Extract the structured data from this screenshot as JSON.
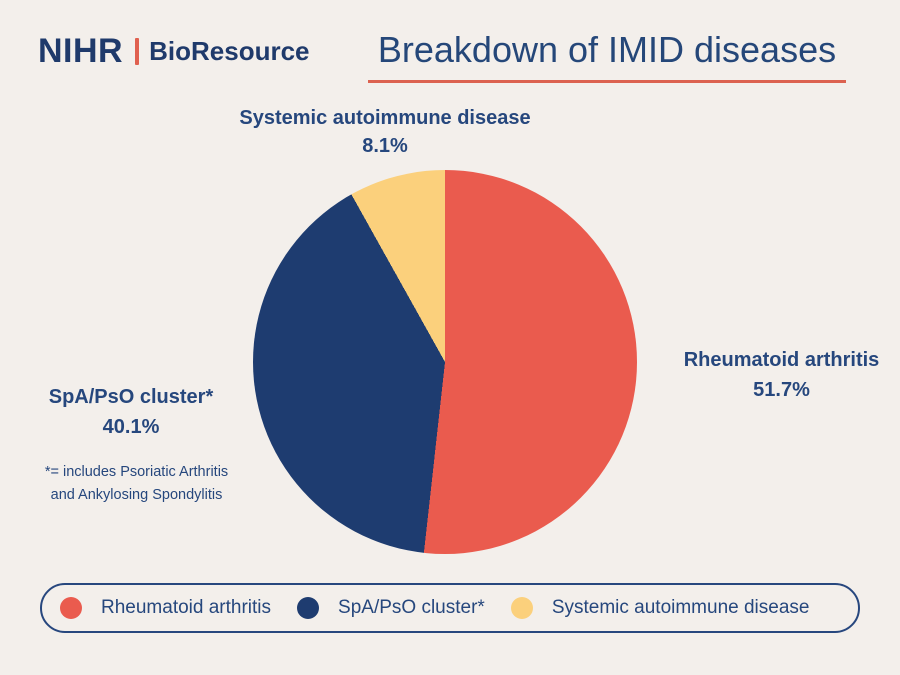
{
  "page": {
    "background_color": "#F3EFEB",
    "text_color": "#26477D"
  },
  "header": {
    "logo": {
      "primary": "NIHR",
      "secondary": "BioResource",
      "separator_color": "#E0604F",
      "text_color": "#1F3A6B"
    },
    "title": "Breakdown of IMID diseases",
    "title_underline_color": "#DC6250"
  },
  "chart_data": {
    "type": "pie",
    "title": "Breakdown of IMID diseases",
    "start_angle_deg": 0,
    "direction": "clockwise",
    "legend_position": "bottom",
    "slices": [
      {
        "label": "Rheumatoid arthritis",
        "value": 51.7,
        "color": "#EA5B4E"
      },
      {
        "label": "SpA/PsO cluster*",
        "value": 40.1,
        "color": "#1E3C70"
      },
      {
        "label": "Systemic autoimmune disease",
        "value": 8.1,
        "color": "#FBD07C"
      }
    ]
  },
  "callouts": {
    "top": {
      "name": "Systemic autoimmune disease",
      "value": "8.1%"
    },
    "right": {
      "name": "Rheumatoid arthritis",
      "value": "51.7%"
    },
    "left": {
      "name": "SpA/PsO cluster*",
      "value": "40.1%"
    }
  },
  "footnote": {
    "line1": "*= includes Psoriatic Arthritis",
    "line2": "and Ankylosing Spondylitis"
  },
  "legend": {
    "border_color": "#27477E",
    "items": [
      {
        "label": "Rheumatoid arthritis",
        "color": "#EA5B4E"
      },
      {
        "label": "SpA/PsO cluster*",
        "color": "#1E3C70"
      },
      {
        "label": "Systemic autoimmune disease",
        "color": "#FBD07C"
      }
    ]
  }
}
